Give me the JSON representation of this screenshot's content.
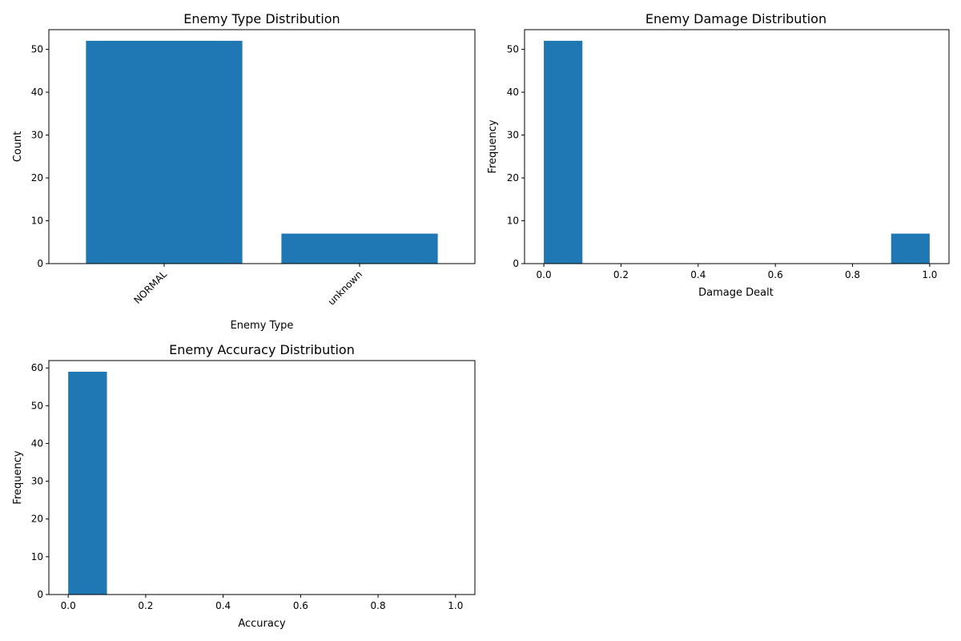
{
  "colors": {
    "bar": "#1f77b4",
    "axis": "#000000",
    "background": "#ffffff"
  },
  "chart_data": [
    {
      "type": "bar",
      "title": "Enemy Type Distribution",
      "xlabel": "Enemy Type",
      "ylabel": "Count",
      "categories": [
        "NORMAL",
        "unknown"
      ],
      "values": [
        52,
        7
      ],
      "ylim": [
        0,
        54.6
      ],
      "yticks": [
        0,
        10,
        20,
        30,
        40,
        50
      ],
      "tick_rotation_deg": 45,
      "grid": false
    },
    {
      "type": "bar",
      "subtype": "histogram",
      "title": "Enemy Damage Distribution",
      "xlabel": "Damage Dealt",
      "ylabel": "Frequency",
      "bin_edges": [
        0.0,
        0.1,
        0.2,
        0.3,
        0.4,
        0.5,
        0.6,
        0.7,
        0.8,
        0.9,
        1.0
      ],
      "counts": [
        52,
        0,
        0,
        0,
        0,
        0,
        0,
        0,
        0,
        7
      ],
      "xlim": [
        -0.05,
        1.05
      ],
      "ylim": [
        0,
        54.6
      ],
      "xticks": [
        "0.0",
        "0.2",
        "0.4",
        "0.6",
        "0.8",
        "1.0"
      ],
      "yticks": [
        0,
        10,
        20,
        30,
        40,
        50
      ],
      "grid": false
    },
    {
      "type": "bar",
      "subtype": "histogram",
      "title": "Enemy Accuracy Distribution",
      "xlabel": "Accuracy",
      "ylabel": "Frequency",
      "bin_edges": [
        0.0,
        0.1,
        0.2,
        0.3,
        0.4,
        0.5,
        0.6,
        0.7,
        0.8,
        0.9,
        1.0
      ],
      "counts": [
        59,
        0,
        0,
        0,
        0,
        0,
        0,
        0,
        0,
        0
      ],
      "xlim": [
        -0.05,
        1.05
      ],
      "ylim": [
        0,
        61.95
      ],
      "xticks": [
        "0.0",
        "0.2",
        "0.4",
        "0.6",
        "0.8",
        "1.0"
      ],
      "yticks": [
        0,
        10,
        20,
        30,
        40,
        50,
        60
      ],
      "grid": false
    }
  ]
}
